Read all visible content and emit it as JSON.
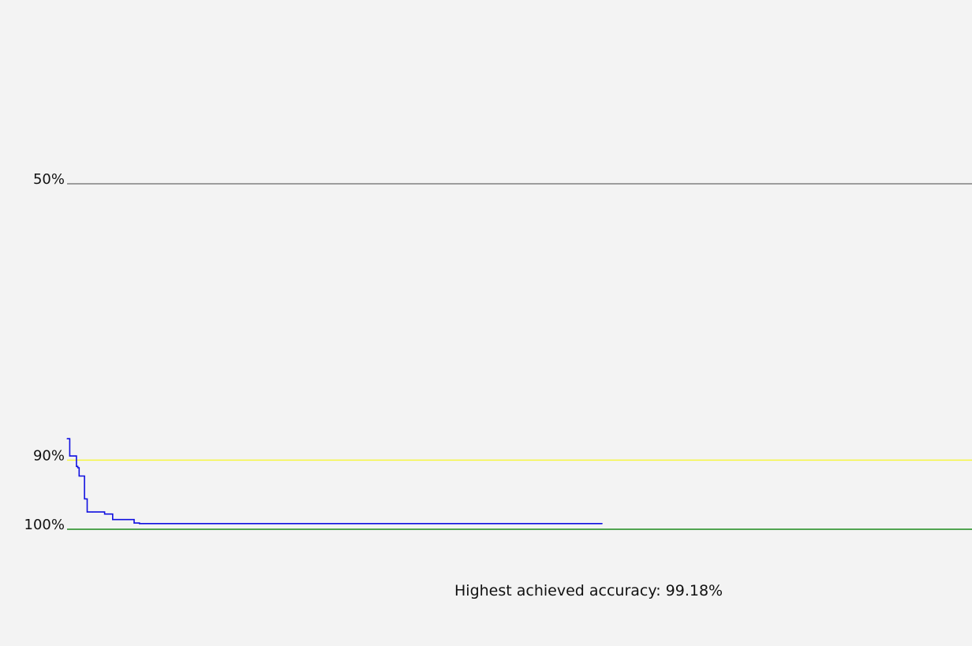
{
  "chart_data": {
    "type": "line",
    "y_axis": {
      "inverted": true,
      "min_shown": 43.0,
      "max_shown": 100.0,
      "unit": "%"
    },
    "reference_lines": [
      {
        "value": 50,
        "label": "50%",
        "color": "#808080"
      },
      {
        "value": 90,
        "label": "90%",
        "color": "#f5f542"
      },
      {
        "value": 100,
        "label": "100%",
        "color": "#1a8a1a"
      }
    ],
    "series": [
      {
        "color": "#1010e0",
        "x": [
          1,
          2,
          3,
          6,
          7,
          8,
          9,
          10,
          11,
          12,
          14,
          15,
          16,
          18,
          20,
          28,
          29,
          34,
          35,
          40,
          42,
          43,
          50,
          51,
          54,
          55,
          57,
          58,
          63,
          74,
          107,
          133,
          400
        ],
        "y": [
          86.9,
          86.9,
          89.4,
          89.4,
          89.4,
          90.9,
          91.1,
          92.3,
          92.3,
          92.3,
          95.6,
          95.6,
          97.5,
          97.5,
          97.5,
          97.5,
          97.8,
          97.8,
          98.6,
          98.6,
          98.6,
          98.6,
          98.6,
          99.1,
          99.1,
          99.18,
          99.18,
          99.18,
          99.18,
          99.18,
          99.18,
          99.18,
          99.18
        ]
      }
    ],
    "grid": false,
    "legend": "none"
  },
  "caption": "Highest achieved accuracy: 99.18%"
}
